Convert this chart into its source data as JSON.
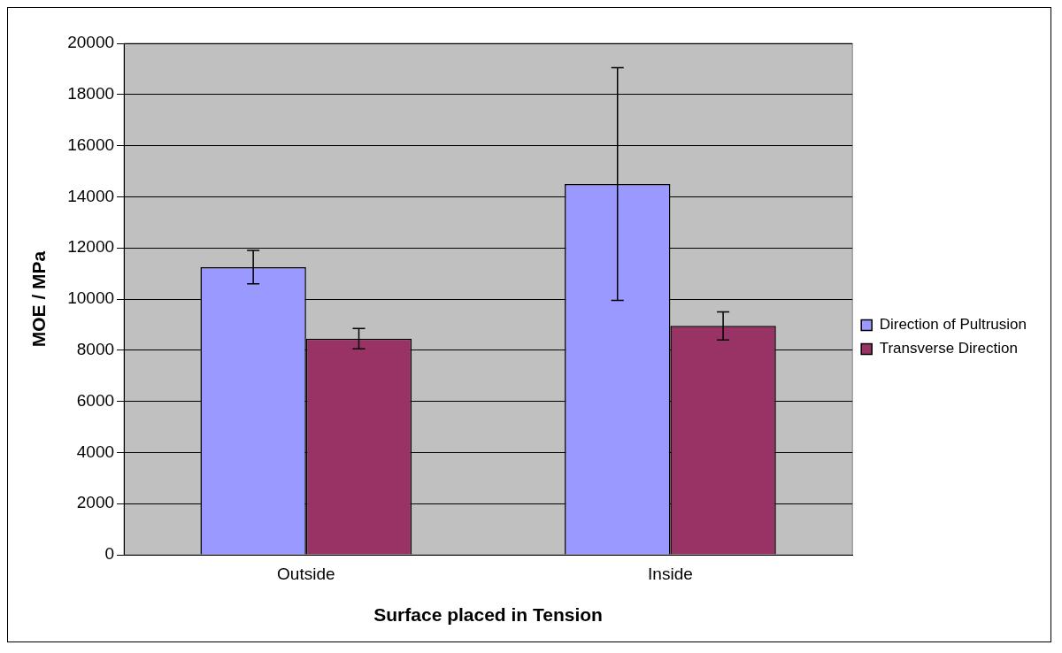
{
  "chart_data": {
    "type": "bar",
    "xlabel": "Surface placed in Tension",
    "ylabel": "MOE / MPa",
    "categories": [
      "Outside",
      "Inside"
    ],
    "series": [
      {
        "name": "Direction of Pultrusion",
        "color": "#9999ff",
        "values": [
          11250,
          14500
        ],
        "errors": [
          650,
          4550
        ]
      },
      {
        "name": "Transverse Direction",
        "color": "#993366",
        "values": [
          8450,
          8950
        ],
        "errors": [
          400,
          550
        ]
      }
    ],
    "ylim": [
      0,
      20000
    ],
    "yticks": [
      0,
      2000,
      4000,
      6000,
      8000,
      10000,
      12000,
      14000,
      16000,
      18000,
      20000
    ],
    "grid": "y",
    "legend": "right"
  }
}
